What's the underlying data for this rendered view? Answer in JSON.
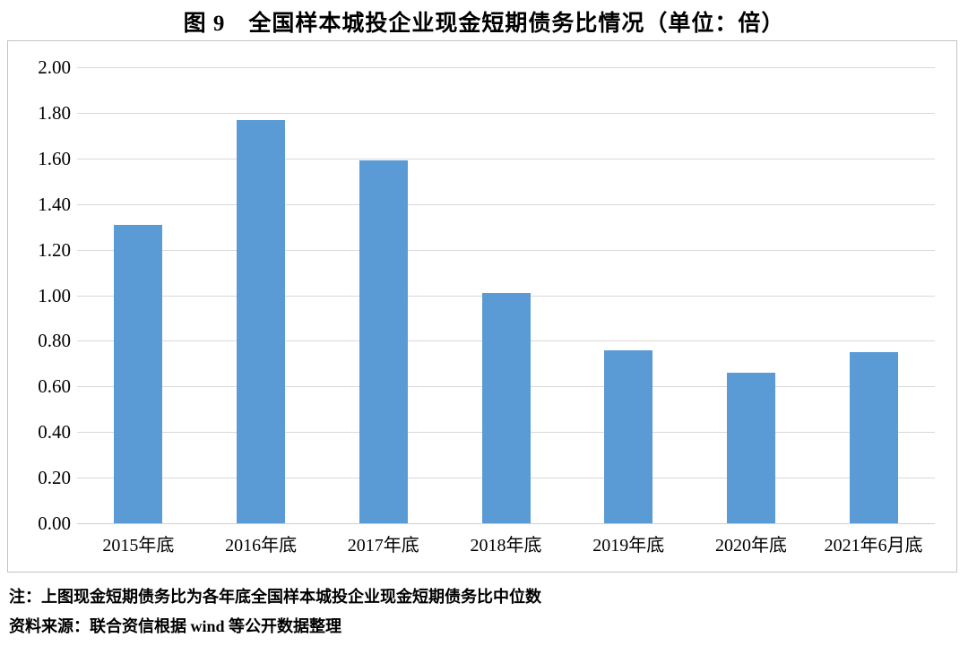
{
  "title": "图 9　全国样本城投企业现金短期债务比情况（单位：倍）",
  "chart_data": {
    "type": "bar",
    "title": "全国样本城投企业现金短期债务比情况",
    "unit": "倍",
    "categories": [
      "2015年底",
      "2016年底",
      "2017年底",
      "2018年底",
      "2019年底",
      "2020年底",
      "2021年6月底"
    ],
    "values": [
      1.31,
      1.77,
      1.59,
      1.01,
      0.76,
      0.66,
      0.75
    ],
    "xlabel": "",
    "ylabel": "",
    "ylim": [
      0.0,
      2.0
    ],
    "ytick_step": 0.2,
    "ytick_labels": [
      "0.00",
      "0.20",
      "0.40",
      "0.60",
      "0.80",
      "1.00",
      "1.20",
      "1.40",
      "1.60",
      "1.80",
      "2.00"
    ],
    "grid": true,
    "legend": "none",
    "bar_color": "#5B9BD5",
    "gridline_color": "#d9d9d9",
    "frame_border_color": "#c3c3c3"
  },
  "notes": {
    "note_line": "注：上图现金短期债务比为各年底全国样本城投企业现金短期债务比中位数",
    "source_line": "资料来源：联合资信根据 wind 等公开数据整理"
  }
}
